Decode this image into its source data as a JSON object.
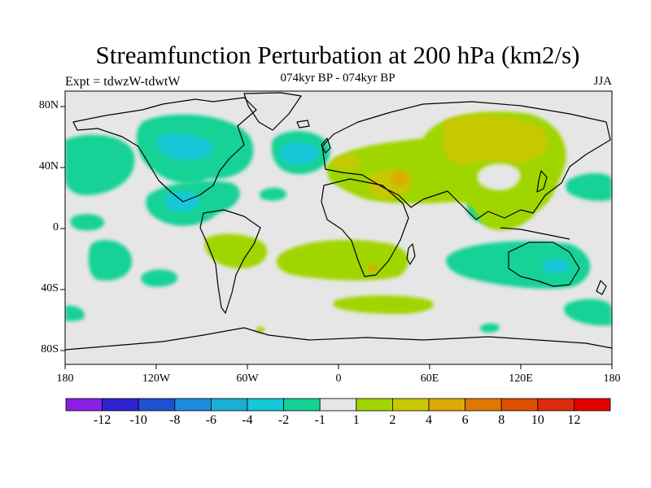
{
  "title": "Streamfunction Perturbation at 200 hPa (km2/s)",
  "experiment": "Expt = tdwzW-tdwtW",
  "subtitle": "074kyr BP - 074kyr BP",
  "season": "JJA",
  "lat_labels": [
    "80N",
    "40N",
    "0",
    "40S",
    "80S"
  ],
  "lon_labels": [
    "180",
    "120W",
    "60W",
    "0",
    "60E",
    "120E",
    "180"
  ],
  "colorbar": {
    "labels": [
      "-12",
      "-10",
      "-8",
      "-6",
      "-4",
      "-2",
      "-1",
      "1",
      "2",
      "4",
      "6",
      "8",
      "10",
      "12"
    ],
    "colors": [
      "#8b1ee6",
      "#2d23d2",
      "#1e50d2",
      "#1e8cdc",
      "#19afd2",
      "#14c8d7",
      "#14d296",
      "#e6e6e6",
      "#a0d600",
      "#c8c800",
      "#dcaa00",
      "#e07800",
      "#de5000",
      "#dc2a0a",
      "#e60000"
    ]
  },
  "colors": {
    "neutral": "#e6e6e6",
    "green_pos": "#a0d600",
    "olive_pos": "#c8c800",
    "orange_pos": "#dcaa00",
    "teal_neg": "#14d296",
    "cyan_neg": "#14c8d7",
    "blue_neg": "#19afd2"
  }
}
